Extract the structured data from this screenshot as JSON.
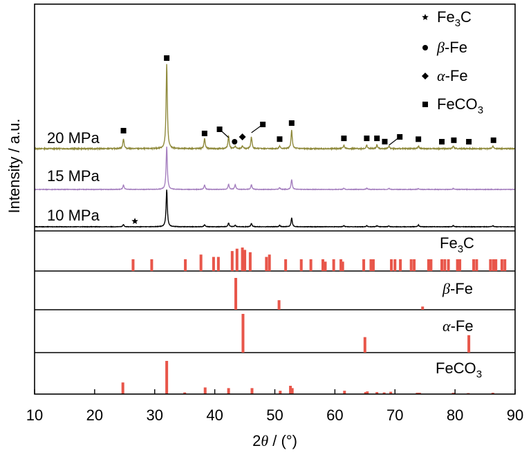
{
  "chart_data": {
    "type": "line",
    "xlabel": {
      "prefix": "2",
      "symbol": "θ",
      "suffix": " / (°)"
    },
    "ylabel": "Intensity / a.u.",
    "xlim": [
      10,
      90
    ],
    "xticks": [
      10,
      20,
      30,
      40,
      50,
      60,
      70,
      80,
      90
    ],
    "colors": {
      "p20": "#8f8a3c",
      "p15": "#a57fbf",
      "p10": "#000000",
      "reference": "#e8564a"
    },
    "legend": {
      "placement": "top-right",
      "items": [
        {
          "marker": "star",
          "text": "Fe",
          "sub": "3",
          "tail": "C"
        },
        {
          "marker": "circle",
          "greek": "β",
          "text": "-Fe"
        },
        {
          "marker": "diamond",
          "greek": "α",
          "text": "-Fe"
        },
        {
          "marker": "square",
          "text": "FeCO",
          "sub": "3",
          "tail": ""
        }
      ]
    },
    "series": [
      {
        "name": "20 MPa",
        "key": "p20",
        "color_key": "p20",
        "peaks": [
          [
            24.8,
            0.12
          ],
          [
            32.0,
            1.0
          ],
          [
            38.3,
            0.12
          ],
          [
            42.3,
            0.15
          ],
          [
            43.4,
            0.03
          ],
          [
            44.6,
            0.03
          ],
          [
            46.1,
            0.14
          ],
          [
            50.8,
            0.03
          ],
          [
            52.8,
            0.22
          ],
          [
            61.5,
            0.04
          ],
          [
            65.3,
            0.04
          ],
          [
            67.0,
            0.04
          ],
          [
            69.0,
            0.03
          ],
          [
            73.9,
            0.03
          ],
          [
            79.7,
            0.03
          ],
          [
            86.3,
            0.03
          ]
        ]
      },
      {
        "name": "15 MPa",
        "key": "p15",
        "color_key": "p15",
        "peaks": [
          [
            24.8,
            0.1
          ],
          [
            32.0,
            1.0
          ],
          [
            38.3,
            0.1
          ],
          [
            42.3,
            0.12
          ],
          [
            43.4,
            0.11
          ],
          [
            46.1,
            0.11
          ],
          [
            50.8,
            0.04
          ],
          [
            52.8,
            0.23
          ],
          [
            61.5,
            0.03
          ],
          [
            65.3,
            0.03
          ],
          [
            69.0,
            0.03
          ],
          [
            73.9,
            0.02
          ],
          [
            79.7,
            0.02
          ]
        ]
      },
      {
        "name": "10 MPa",
        "key": "p10",
        "color_key": "p10",
        "peaks": [
          [
            24.8,
            0.06
          ],
          [
            32.0,
            1.0
          ],
          [
            38.3,
            0.06
          ],
          [
            42.3,
            0.1
          ],
          [
            43.4,
            0.04
          ],
          [
            46.1,
            0.09
          ],
          [
            50.8,
            0.04
          ],
          [
            52.8,
            0.24
          ],
          [
            61.5,
            0.03
          ],
          [
            65.3,
            0.03
          ],
          [
            67.0,
            0.03
          ],
          [
            69.0,
            0.02
          ],
          [
            73.9,
            0.05
          ],
          [
            79.7,
            0.03
          ],
          [
            86.3,
            0.03
          ]
        ]
      }
    ],
    "markers": [
      {
        "series": "p20",
        "shape": "square",
        "x": 24.8
      },
      {
        "series": "p20",
        "shape": "square",
        "x": 32.0
      },
      {
        "series": "p20",
        "shape": "square",
        "x": 38.3
      },
      {
        "series": "p20",
        "shape": "square",
        "x": 40.8
      },
      {
        "series": "p20",
        "shape": "circle",
        "x": 43.3
      },
      {
        "series": "p20",
        "shape": "diamond",
        "x": 44.6
      },
      {
        "series": "p20",
        "shape": "square",
        "x": 48.0
      },
      {
        "series": "p20",
        "shape": "square",
        "x": 50.8
      },
      {
        "series": "p20",
        "shape": "square",
        "x": 52.8
      },
      {
        "series": "p20",
        "shape": "square",
        "x": 61.5
      },
      {
        "series": "p20",
        "shape": "square",
        "x": 65.3
      },
      {
        "series": "p20",
        "shape": "square",
        "x": 67.0
      },
      {
        "series": "p20",
        "shape": "square",
        "x": 68.3
      },
      {
        "series": "p20",
        "shape": "square",
        "x": 70.8
      },
      {
        "series": "p20",
        "shape": "square",
        "x": 73.9
      },
      {
        "series": "p20",
        "shape": "square",
        "x": 77.8
      },
      {
        "series": "p20",
        "shape": "square",
        "x": 79.8
      },
      {
        "series": "p20",
        "shape": "square",
        "x": 82.3
      },
      {
        "series": "p20",
        "shape": "square",
        "x": 86.4
      },
      {
        "series": "p10",
        "shape": "star",
        "x": 26.7
      }
    ],
    "references": [
      {
        "label": "Fe",
        "sub": "3",
        "tail": "C",
        "greek": "",
        "sticks": [
          [
            26.4,
            0.5
          ],
          [
            29.5,
            0.5
          ],
          [
            35.1,
            0.5
          ],
          [
            37.7,
            0.7
          ],
          [
            39.8,
            0.6
          ],
          [
            40.6,
            0.6
          ],
          [
            42.9,
            0.85
          ],
          [
            43.7,
            0.95
          ],
          [
            44.6,
            1.0
          ],
          [
            45.0,
            0.9
          ],
          [
            45.9,
            0.8
          ],
          [
            48.6,
            0.6
          ],
          [
            49.1,
            0.7
          ],
          [
            51.8,
            0.5
          ],
          [
            54.4,
            0.5
          ],
          [
            56.0,
            0.5
          ],
          [
            58.0,
            0.5
          ],
          [
            58.4,
            0.4
          ],
          [
            59.8,
            0.5
          ],
          [
            61.0,
            0.5
          ],
          [
            61.3,
            0.4
          ],
          [
            64.8,
            0.5
          ],
          [
            66.0,
            0.5
          ],
          [
            66.4,
            0.5
          ],
          [
            69.4,
            0.5
          ],
          [
            70.0,
            0.5
          ],
          [
            70.9,
            0.5
          ],
          [
            72.7,
            0.5
          ],
          [
            73.2,
            0.5
          ],
          [
            75.6,
            0.5
          ],
          [
            76.0,
            0.5
          ],
          [
            77.8,
            0.5
          ],
          [
            78.3,
            0.5
          ],
          [
            78.9,
            0.5
          ],
          [
            80.4,
            0.5
          ],
          [
            80.8,
            0.5
          ],
          [
            83.1,
            0.5
          ],
          [
            83.6,
            0.5
          ],
          [
            85.9,
            0.5
          ],
          [
            86.4,
            0.5
          ],
          [
            86.8,
            0.5
          ],
          [
            87.8,
            0.5
          ],
          [
            88.3,
            0.5
          ]
        ]
      },
      {
        "label": "-Fe",
        "sub": "",
        "tail": "",
        "greek": "β",
        "sticks": [
          [
            43.5,
            1.0
          ],
          [
            50.7,
            0.3
          ],
          [
            74.6,
            0.1
          ]
        ]
      },
      {
        "label": "-Fe",
        "sub": "",
        "tail": "",
        "greek": "α",
        "sticks": [
          [
            44.7,
            1.0
          ],
          [
            65.0,
            0.4
          ],
          [
            82.3,
            0.45
          ]
        ]
      },
      {
        "label": "FeCO",
        "sub": "3",
        "tail": "",
        "greek": "",
        "sticks": [
          [
            24.7,
            0.35
          ],
          [
            32.0,
            1.0
          ],
          [
            35.0,
            0.05
          ],
          [
            38.4,
            0.2
          ],
          [
            42.3,
            0.18
          ],
          [
            46.2,
            0.18
          ],
          [
            50.9,
            0.1
          ],
          [
            52.6,
            0.25
          ],
          [
            52.9,
            0.18
          ],
          [
            61.6,
            0.1
          ],
          [
            65.1,
            0.06
          ],
          [
            65.4,
            0.08
          ],
          [
            67.0,
            0.06
          ],
          [
            68.2,
            0.05
          ],
          [
            69.3,
            0.07
          ],
          [
            73.7,
            0.04
          ],
          [
            74.1,
            0.04
          ],
          [
            79.7,
            0.04
          ],
          [
            82.2,
            0.03
          ],
          [
            86.3,
            0.04
          ]
        ]
      }
    ]
  }
}
